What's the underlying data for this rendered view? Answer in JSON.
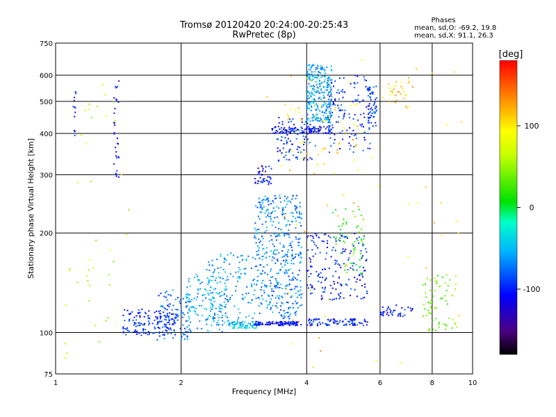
{
  "chart_data": {
    "type": "scatter",
    "title": "Tromsø 20120420 20:24:00-20:25:43",
    "subtitle": "RwPretec (8p)",
    "phases_header": "Phases",
    "stats": [
      {
        "label": "mean, sd,O:",
        "mean": -69.2,
        "sd": 19.8
      },
      {
        "label": "mean, sd,X:",
        "mean": 91.1,
        "sd": 26.3
      }
    ],
    "xlabel": "Frequency [MHz]",
    "ylabel": "Stationary phase Virtual Height [km]",
    "x_scale": "log",
    "y_scale": "log",
    "xlim": [
      1,
      10
    ],
    "ylim": [
      75,
      750
    ],
    "x_ticks": [
      1,
      2,
      4,
      6,
      8,
      10
    ],
    "y_ticks": [
      75,
      100,
      200,
      300,
      400,
      500,
      600,
      750
    ],
    "grid": true,
    "colorbar": {
      "label": "[deg]",
      "range": [
        -180,
        180
      ],
      "ticks": [
        100,
        0,
        -100
      ],
      "colormap": "rainbow"
    },
    "clusters": [
      {
        "f": [
          1.45,
          1.95
        ],
        "h": [
          98,
          118
        ],
        "phase": -95,
        "n": 160
      },
      {
        "f": [
          1.75,
          2.1
        ],
        "h": [
          95,
          135
        ],
        "phase": -80,
        "n": 90
      },
      {
        "f": [
          2.05,
          2.6
        ],
        "h": [
          100,
          150
        ],
        "phase": -55,
        "n": 140
      },
      {
        "f": [
          2.6,
          3.05
        ],
        "h": [
          103,
          108
        ],
        "phase": -45,
        "n": 60
      },
      {
        "f": [
          2.3,
          3.0
        ],
        "h": [
          105,
          175
        ],
        "phase": -60,
        "n": 130
      },
      {
        "f": [
          3.0,
          3.9
        ],
        "h": [
          105,
          108
        ],
        "phase": -105,
        "n": 110
      },
      {
        "f": [
          4.0,
          5.6
        ],
        "h": [
          105,
          110
        ],
        "phase": -100,
        "n": 90
      },
      {
        "f": [
          3.0,
          3.9
        ],
        "h": [
          110,
          260
        ],
        "phase": -70,
        "n": 430
      },
      {
        "f": [
          3.0,
          3.3
        ],
        "h": [
          280,
          320
        ],
        "phase": -110,
        "n": 40
      },
      {
        "f": [
          3.3,
          4.6
        ],
        "h": [
          400,
          420
        ],
        "phase": -105,
        "n": 110
      },
      {
        "f": [
          3.4,
          4.2
        ],
        "h": [
          330,
          450
        ],
        "phase": -95,
        "n": 90
      },
      {
        "f": [
          4.0,
          4.6
        ],
        "h": [
          430,
          650
        ],
        "phase": -60,
        "n": 260
      },
      {
        "f": [
          4.5,
          5.7
        ],
        "h": [
          350,
          600
        ],
        "phase": -95,
        "n": 130
      },
      {
        "f": [
          4.0,
          5.6
        ],
        "h": [
          125,
          200
        ],
        "phase": -100,
        "n": 180
      },
      {
        "f": [
          4.6,
          5.5
        ],
        "h": [
          150,
          240
        ],
        "phase": 20,
        "n": 60
      },
      {
        "f": [
          5.6,
          5.9
        ],
        "h": [
          420,
          560
        ],
        "phase": -90,
        "n": 50
      },
      {
        "f": [
          6.2,
          7.2
        ],
        "h": [
          470,
          590
        ],
        "phase": 110,
        "n": 30
      },
      {
        "f": [
          6.0,
          7.2
        ],
        "h": [
          112,
          122
        ],
        "phase": -100,
        "n": 40
      },
      {
        "f": [
          7.6,
          9.2
        ],
        "h": [
          100,
          150
        ],
        "phase": 40,
        "n": 70
      },
      {
        "f": [
          1.05,
          1.5
        ],
        "h": [
          80,
          700
        ],
        "phase": 60,
        "n": 40
      },
      {
        "f": [
          1.1,
          1.12
        ],
        "h": [
          390,
          540
        ],
        "phase": -110,
        "n": 12
      },
      {
        "f": [
          1.38,
          1.42
        ],
        "h": [
          290,
          590
        ],
        "phase": -110,
        "n": 30
      },
      {
        "f": [
          3.2,
          9.5
        ],
        "h": [
          78,
          700
        ],
        "phase": 110,
        "n": 60
      },
      {
        "f": [
          3.5,
          5.8
        ],
        "h": [
          300,
          500
        ],
        "phase": 100,
        "n": 45
      }
    ]
  }
}
